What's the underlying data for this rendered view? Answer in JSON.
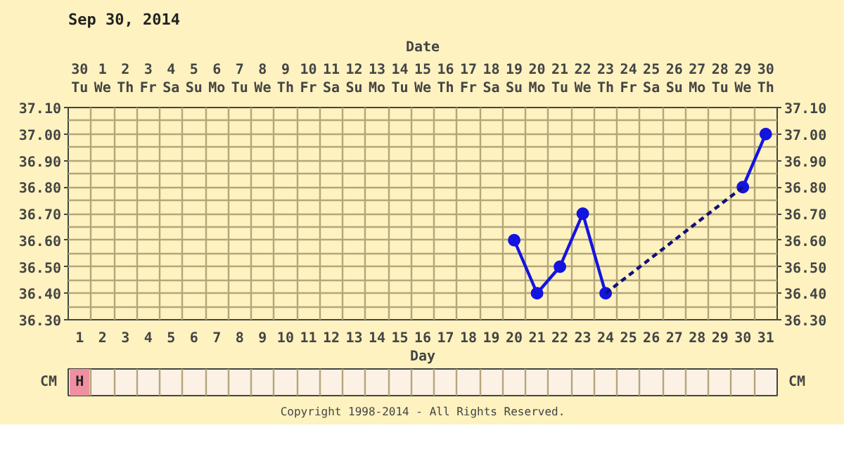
{
  "chart_data": {
    "type": "line",
    "title": "Sep 30, 2014",
    "xlabel": "Date",
    "x2label": "Day",
    "annotations": [
      "Copyright 1998-2014 - All Rights Reserved.",
      "CM",
      "H"
    ],
    "xlim": [
      "2014-09-29T12:00",
      "2014-10-30T12:00"
    ],
    "xticks": [
      {
        "value": "2014-09-30",
        "label": "30\nTu"
      },
      {
        "value": "2014-10-01",
        "label": "1\nWe"
      },
      {
        "value": "2014-10-02",
        "label": "2\nTh"
      },
      {
        "value": "2014-10-03",
        "label": "3\nFr"
      },
      {
        "value": "2014-10-04",
        "label": "4\nSa"
      },
      {
        "value": "2014-10-05",
        "label": "5\nSu"
      },
      {
        "value": "2014-10-06",
        "label": "6\nMo"
      },
      {
        "value": "2014-10-07",
        "label": "7\nTu"
      },
      {
        "value": "2014-10-08",
        "label": "8\nWe"
      },
      {
        "value": "2014-10-09",
        "label": "9\nTh"
      },
      {
        "value": "2014-10-10",
        "label": "10\nFr"
      },
      {
        "value": "2014-10-11",
        "label": "11\nSa"
      },
      {
        "value": "2014-10-12",
        "label": "12\nSu"
      },
      {
        "value": "2014-10-13",
        "label": "13\nMo"
      },
      {
        "value": "2014-10-14",
        "label": "14\nTu"
      },
      {
        "value": "2014-10-15",
        "label": "15\nWe"
      },
      {
        "value": "2014-10-16",
        "label": "16\nTh"
      },
      {
        "value": "2014-10-17",
        "label": "17\nFr"
      },
      {
        "value": "2014-10-18",
        "label": "18\nSa"
      },
      {
        "value": "2014-10-19",
        "label": "19\nSu"
      },
      {
        "value": "2014-10-20",
        "label": "20\nMo"
      },
      {
        "value": "2014-10-21",
        "label": "21\nTu"
      },
      {
        "value": "2014-10-22",
        "label": "22\nWe"
      },
      {
        "value": "2014-10-23",
        "label": "23\nTh"
      },
      {
        "value": "2014-10-24",
        "label": "24\nFr"
      },
      {
        "value": "2014-10-25",
        "label": "25\nSa"
      },
      {
        "value": "2014-10-26",
        "label": "26\nSu"
      },
      {
        "value": "2014-10-27",
        "label": "27\nMo"
      },
      {
        "value": "2014-10-28",
        "label": "28\nTu"
      },
      {
        "value": "2014-10-29",
        "label": "29\nWe"
      },
      {
        "value": "2014-10-30",
        "label": "30\nTh"
      }
    ],
    "x2lim": [
      0.5,
      31.5
    ],
    "x2ticks": [
      1,
      2,
      3,
      4,
      5,
      6,
      7,
      8,
      9,
      10,
      11,
      12,
      13,
      14,
      15,
      16,
      17,
      18,
      19,
      20,
      21,
      22,
      23,
      24,
      25,
      26,
      27,
      28,
      29,
      30,
      31
    ],
    "ylim": [
      36.3,
      37.1
    ],
    "yticks": [
      {
        "value": 36.3,
        "label": "36.30"
      },
      {
        "value": 36.4,
        "label": "36.40"
      },
      {
        "value": 36.5,
        "label": "36.50"
      },
      {
        "value": 36.6,
        "label": "36.60"
      },
      {
        "value": 36.7,
        "label": "36.70"
      },
      {
        "value": 36.8,
        "label": "36.80"
      },
      {
        "value": 36.9,
        "label": "36.90"
      },
      {
        "value": 37.0,
        "label": "37.00"
      },
      {
        "value": 37.1,
        "label": "37.10"
      }
    ],
    "y2lim": [
      36.3,
      37.1
    ],
    "y2ticks": [
      {
        "value": 36.3,
        "label": "36.30"
      },
      {
        "value": 36.4,
        "label": "36.40"
      },
      {
        "value": 36.5,
        "label": "36.50"
      },
      {
        "value": 36.6,
        "label": "36.60"
      },
      {
        "value": 36.7,
        "label": "36.70"
      },
      {
        "value": 36.8,
        "label": "36.80"
      },
      {
        "value": 36.9,
        "label": "36.90"
      },
      {
        "value": 37.0,
        "label": "37.00"
      },
      {
        "value": 37.1,
        "label": "37.10"
      }
    ],
    "grid": true,
    "marker": "circle",
    "series": [
      {
        "color": "#1414e0",
        "line_style": "solid",
        "x": [
          "2014-10-19",
          "2014-10-20",
          "2014-10-21",
          "2014-10-22",
          "2014-10-23",
          "2014-10-24",
          "2014-10-29",
          "2014-10-30"
        ],
        "values": [
          36.6,
          36.4,
          36.5,
          36.7,
          36.4,
          null,
          36.8,
          37.0
        ]
      },
      {
        "color": "#10107a",
        "line_style": "dashed",
        "marker": "none",
        "x": [
          "2014-10-23",
          "2014-10-29"
        ],
        "values": [
          36.4,
          36.8
        ]
      }
    ]
  }
}
